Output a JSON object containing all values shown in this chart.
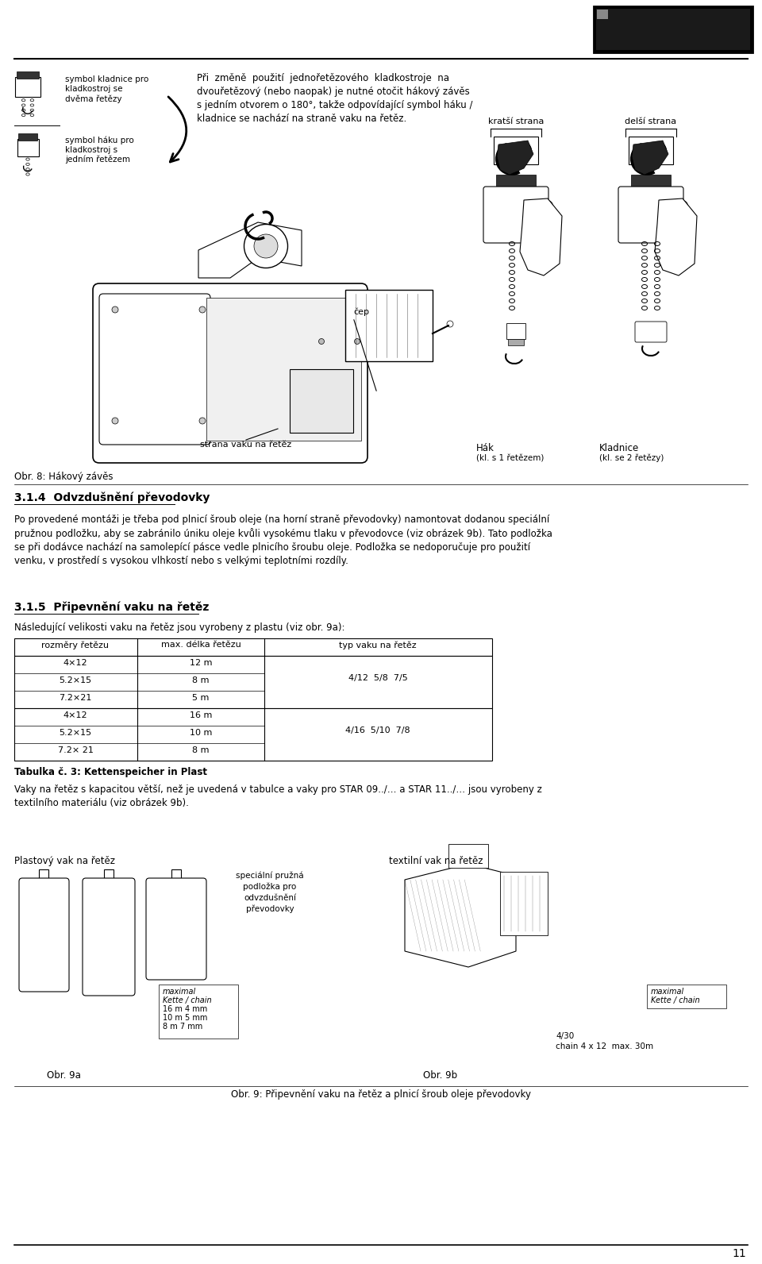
{
  "bg_color": "#ffffff",
  "page_width": 9.6,
  "page_height": 15.92,
  "section_heading": "3.1.4  Odvzdušnění převodovky",
  "section_heading_2": "3.1.5  Připevnění vaku na řetěz",
  "obr8_label": "Obr. 8: Hákový závěs",
  "symbol_text1_line1": "symbol kladnice pro",
  "symbol_text1_line2": "kladkostroj se",
  "symbol_text1_line3": "dvěma řetězy",
  "symbol_text2_line1": "symbol háku pro",
  "symbol_text2_line2": "kladkostroj s",
  "symbol_text2_line3": "jedním řetězem",
  "main_caption": "Při  změně  použití  jednořetězového  kladkostroje  na\ndvouřetězový (nebo naopak) je nutné otočit hákový závěs\ns jedním otvorem o 180°, takže odpovídající symbol háku /\nkladnice se nachází na straně vaku na řetěz.",
  "kratsi_strana": "kratší strana",
  "delsi_strana": "delší strana",
  "cep_label": "čep",
  "strana_label": "strana vaku na řetěz",
  "hak_label": "Hák",
  "hak_sub": "(kl. s 1 řetězem)",
  "kladnice_label": "Kladnice",
  "kladnice_sub": "(kl. se 2 řetězy)",
  "section314_text": "Po provedené montáži je třeba pod plnicí šroub oleje (na horní straně převodovky) namontovat dodanou speciální\npružnou podložku, aby se zabránilo úniku oleje kvůli vysokému tlaku v převodovce (viz obrázek 9b). Tato podložka\nse při dodávce nachází na samolepící pásce vedle plnicího šroubu oleje. Podložka se nedoporučuje pro použití\nvenku, v prostředí s vysokou vlhkostí nebo s velkými teplotními rozdíly.",
  "section315_intro": "Následující velikosti vaku na řetěz jsou vyrobeny z plastu (viz obr. 9a):",
  "table_headers": [
    "rozměry řetězu",
    "max. délka řetězu",
    "typ vaku na řetěz"
  ],
  "table_col1": [
    "4×12",
    "5.2×15",
    "7.2×21",
    "4×12",
    "5.2×15",
    "7.2× 21"
  ],
  "table_col2": [
    "12 m",
    "8 m",
    "5 m",
    "16 m",
    "10 m",
    "8 m"
  ],
  "table_typ1": "4/12  5/8  7/5",
  "table_typ2": "4/16  5/10  7/8",
  "table_note": "Tabulka č. 3: Kettenspeicher in Plast",
  "vaky_text": "Vaky na řetěz s kapacitou větší, než je uvedená v tabulce a vaky pro STAR 09../… a STAR 11../… jsou vyrobeny z\ntextilního materiálu (viz obrázek 9b).",
  "plastovy_label": "Plastový vak na řetěz",
  "textilni_label": "textilní vak na řetěz",
  "special_label": "speciální pružná\npodložka pro\nodvzdušnění\npřevodovky",
  "maximal_label": "maximal\nKette / chain\n16 m 4 mm\n10 m 5 mm\n8 m 7 mm",
  "maximal_label2": "maximal\nKette / chain",
  "chain_label": "4/30",
  "chain_label2": "chain 4 x 12  max. 30m",
  "obr9a": "Obr. 9a",
  "obr9b": "Obr. 9b",
  "obr9_caption": "Obr. 9: Připevnění vaku na řetěz a plnicí šroub oleje převodovky",
  "page_number": "11"
}
